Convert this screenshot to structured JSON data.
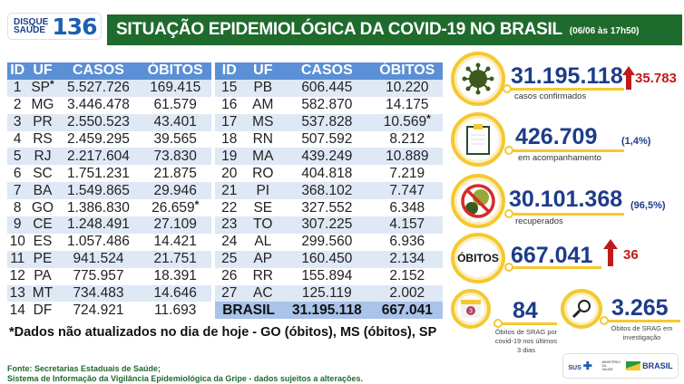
{
  "logo": {
    "line1": "DISQUE",
    "line2": "SAÚDE",
    "number": "136"
  },
  "header": {
    "title": "SITUAÇÃO EPIDEMIOLÓGICA DA COVID-19 NO BRASIL",
    "date": "(06/06 às 17h50)"
  },
  "table": {
    "columns": [
      "ID",
      "UF",
      "CASOS",
      "ÓBITOS"
    ],
    "left": [
      [
        "1",
        "SP",
        "5.527.726",
        "169.415",
        "uf"
      ],
      [
        "2",
        "MG",
        "3.446.478",
        "61.579"
      ],
      [
        "3",
        "PR",
        "2.550.523",
        "43.401"
      ],
      [
        "4",
        "RS",
        "2.459.295",
        "39.565"
      ],
      [
        "5",
        "RJ",
        "2.217.604",
        "73.830"
      ],
      [
        "6",
        "SC",
        "1.751.231",
        "21.875"
      ],
      [
        "7",
        "BA",
        "1.549.865",
        "29.946"
      ],
      [
        "8",
        "GO",
        "1.386.830",
        "26.659",
        "obitos"
      ],
      [
        "9",
        "CE",
        "1.248.491",
        "27.109"
      ],
      [
        "10",
        "ES",
        "1.057.486",
        "14.421"
      ],
      [
        "11",
        "PE",
        "941.524",
        "21.751"
      ],
      [
        "12",
        "PA",
        "775.957",
        "18.391"
      ],
      [
        "13",
        "MT",
        "734.483",
        "14.646"
      ],
      [
        "14",
        "DF",
        "724.921",
        "11.693"
      ]
    ],
    "right": [
      [
        "15",
        "PB",
        "606.445",
        "10.220"
      ],
      [
        "16",
        "AM",
        "582.870",
        "14.175"
      ],
      [
        "17",
        "MS",
        "537.828",
        "10.569",
        "obitos"
      ],
      [
        "18",
        "RN",
        "507.592",
        "8.212"
      ],
      [
        "19",
        "MA",
        "439.249",
        "10.889"
      ],
      [
        "20",
        "RO",
        "404.818",
        "7.219"
      ],
      [
        "21",
        "PI",
        "368.102",
        "7.747"
      ],
      [
        "22",
        "SE",
        "327.552",
        "6.348"
      ],
      [
        "23",
        "TO",
        "307.225",
        "4.157"
      ],
      [
        "24",
        "AL",
        "299.560",
        "6.936"
      ],
      [
        "25",
        "AP",
        "160.450",
        "2.134"
      ],
      [
        "26",
        "RR",
        "155.894",
        "2.152"
      ],
      [
        "27",
        "AC",
        "125.119",
        "2.002"
      ]
    ],
    "total": {
      "label": "BRASIL",
      "casos": "31.195.118",
      "obitos": "667.041"
    },
    "asterisk": "*"
  },
  "note": "*Dados não atualizados no dia de hoje - GO (óbitos), MS (óbitos), SP",
  "source": [
    "Fonte: Secretarias Estaduais de Saúde;",
    "Sistema de Informação da Vigilância Epidemiológica da Gripe - dados sujeitos a alterações."
  ],
  "stats": {
    "confirmed": {
      "value": "31.195.118",
      "label": "casos confirmados",
      "increase": "35.783",
      "icon": "virus-icon"
    },
    "monitoring": {
      "value": "426.709",
      "label": "em acompanhamento",
      "pct": "(1,4%)",
      "icon": "clipboard-icon"
    },
    "recovered": {
      "value": "30.101.368",
      "label": "recuperados",
      "pct": "(96,5%)",
      "icon": "no-virus-icon"
    },
    "deaths": {
      "badge": "ÓBITOS",
      "value": "667.041",
      "increase": "36"
    },
    "srag_recent": {
      "value": "84",
      "label": "Óbitos de SRAG por covid-19 nos últimos 3 dias",
      "calendar_day": "3"
    },
    "srag_investigation": {
      "value": "3.265",
      "label": "Óbitos de SRAG em investigação"
    }
  },
  "footer_logos": {
    "sus": "SUS",
    "ministry": "MINISTÉRIO DA SAÚDE",
    "gov": "BRASIL"
  },
  "colors": {
    "green": "#1f6b2d",
    "blue": "#1d3c8a",
    "header_blue": "#5b8fd6",
    "yellow": "#f5c830",
    "red": "#c01a1a"
  }
}
